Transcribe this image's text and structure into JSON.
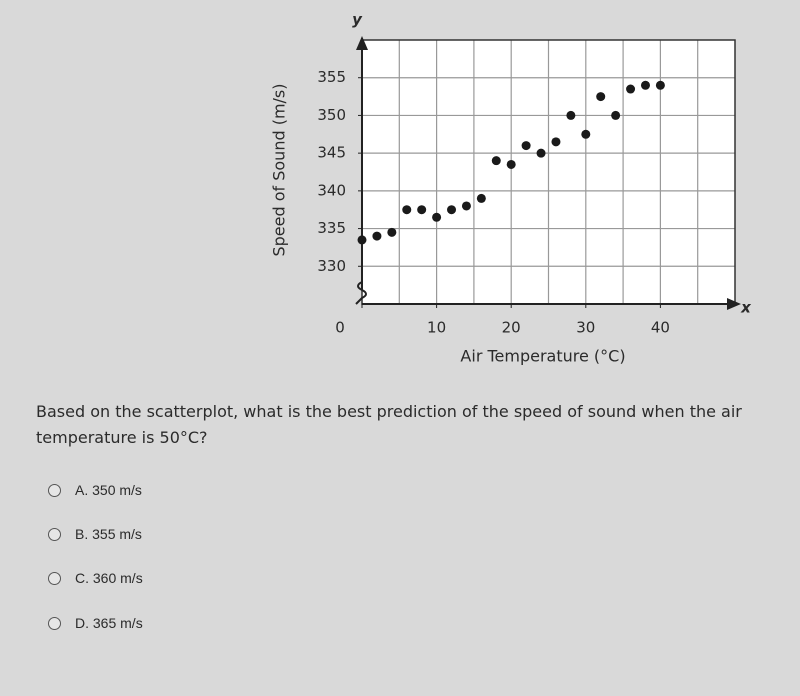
{
  "chart_data": {
    "type": "scatter",
    "x_label": "Air Temperature (°C)",
    "y_label": "Speed of Sound (m/s)",
    "x_axis_symbol": "x",
    "y_axis_symbol": "y",
    "x": [
      0,
      2,
      4,
      6,
      8,
      10,
      12,
      14,
      16,
      18,
      20,
      22,
      24,
      26,
      28,
      30,
      32,
      34,
      36,
      38,
      40
    ],
    "values": [
      333.5,
      334,
      334.5,
      337.5,
      337.5,
      336.5,
      337.5,
      338,
      339,
      344,
      343.5,
      346,
      345,
      346.5,
      350,
      347.5,
      352.5,
      350,
      353.5,
      354,
      354
    ],
    "color": "#1a1a1a",
    "xlim": [
      0,
      50
    ],
    "ylim": [
      325,
      360
    ],
    "xticks": [
      0,
      10,
      20,
      30,
      40
    ],
    "yticks": [
      330,
      335,
      340,
      345,
      350,
      355
    ],
    "grid": true,
    "grid_step": 5
  },
  "question_lines": [
    "Based on the scatterplot, what is the best prediction of the speed of sound when the air",
    "temperature is 50°C?"
  ],
  "options": [
    "A. 350 m/s",
    "B. 355 m/s",
    "C. 360 m/s",
    "D. 365 m/s"
  ]
}
